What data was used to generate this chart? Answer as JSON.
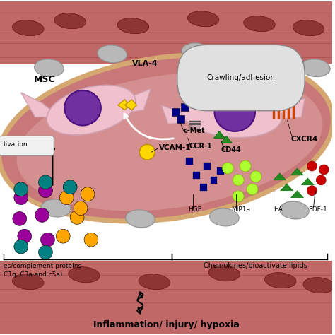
{
  "bg_color": "#ffffff",
  "title_text": "Inflammation/ injury/ hypoxia",
  "label_crawling": "Crawling/adhesion",
  "label_msc": "MSC",
  "label_vla4": "VLA-4",
  "label_vcam1": "VCAM-1",
  "label_activation": "tivation",
  "label_cmet": "c-Met",
  "label_ccr1": "CCR-1",
  "label_cd44": "CD44",
  "label_cxcr4": "CXCR4",
  "label_hgf": "HGF",
  "label_mip1a": "MIP1a",
  "label_ha": "HA",
  "label_sdf1": "SDF-1",
  "label_complement_1": "es/complement proteins",
  "label_complement_2": "C1q, C3a and c5a)",
  "label_chemokines": "Chemokines/bioactivate lipids",
  "vessel_tilt_deg": -10,
  "colors": {
    "dark_blue": "#00008B",
    "yellow": "#FFD700",
    "yellow_green": "#ADFF2F",
    "teal": "#008080",
    "dark_red": "#8B0000",
    "magenta": "#990099",
    "orange": "#FFA500",
    "red": "#CC0000",
    "green": "#228B22",
    "purple": "#7030a0",
    "cyan": "#00BBDD",
    "gray": "#808080",
    "muscle_red": "#c06868",
    "muscle_dark": "#8B3535",
    "vessel_pink": "#c87878",
    "vessel_light": "#d49090",
    "endo_tan": "#d4a870",
    "cell_pink": "#f0c0cc",
    "cell_border": "#d0a0b0"
  }
}
